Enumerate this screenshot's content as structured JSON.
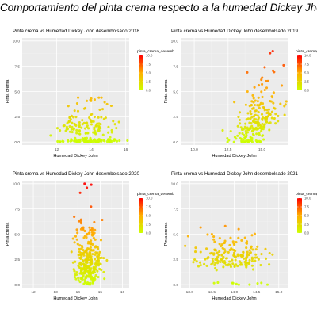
{
  "figure": {
    "title": "Comportamiento del pinta crema respecto a la humedad Dickey Jhon"
  },
  "colors": {
    "panel_bg": "#ebebeb",
    "grid_major": "#ffffff",
    "low": "#ccff00",
    "mid": "#ffb000",
    "high": "#ff0000",
    "text": "#333333"
  },
  "chart_data": [
    {
      "type": "scatter",
      "title": "Pinta crema vs Humedad Dickey John desembolsado 2018",
      "xlabel": "Humedad Dickey John",
      "ylabel": "Pinta crema",
      "xlim": [
        10.0,
        16.2
      ],
      "ylim": [
        -0.3,
        10.3
      ],
      "x_ticks": [
        12,
        14,
        16
      ],
      "y_ticks": [
        0.0,
        2.5,
        5.0,
        7.5,
        10.0
      ],
      "legend": {
        "title": "pinta_crema_desemb",
        "ticks": [
          0.0,
          2.5,
          5.0,
          7.5,
          10.0
        ]
      },
      "generator": {
        "seed": 11,
        "n": 220,
        "x_mean": 13.9,
        "x_sd": 0.8,
        "zero_frac": 0.45,
        "y_scale": 1.1,
        "y_max": 4.4
      },
      "highlight_points": [
        {
          "x": 14.0,
          "y": 4.3
        },
        {
          "x": 14.2,
          "y": 4.2
        },
        {
          "x": 13.6,
          "y": 3.3
        },
        {
          "x": 14.5,
          "y": 3.2
        }
      ]
    },
    {
      "type": "scatter",
      "title": "Pinta crema vs Humedad Dickey John desembolsado 2019",
      "xlabel": "Humedad Dickey John",
      "ylabel": "Pinta crema",
      "xlim": [
        9.0,
        16.9
      ],
      "ylim": [
        -0.3,
        10.3
      ],
      "x_ticks": [
        10,
        12.5,
        15
      ],
      "y_ticks": [
        0.0,
        2.5,
        5.0,
        7.5,
        10.0
      ],
      "legend": {
        "title": "pinta_crema_desemb",
        "ticks": [
          0.0,
          2.5,
          5.0,
          7.5,
          10.0
        ]
      },
      "generator": {
        "seed": 23,
        "n": 210,
        "x_mean": 14.6,
        "x_sd": 0.85,
        "zero_frac": 0.12,
        "y_scale": 1.6,
        "y_max": 9.0,
        "slope": 0.45
      },
      "highlight_points": [
        {
          "x": 15.6,
          "y": 8.8
        },
        {
          "x": 15.8,
          "y": 9.0
        },
        {
          "x": 16.6,
          "y": 7.6
        },
        {
          "x": 15.2,
          "y": 7.4
        }
      ]
    },
    {
      "type": "scatter",
      "title": "Pinta crema vs Humedad Dickey John desembolsado 2020",
      "xlabel": "Humedad Dickey John",
      "ylabel": "Pinta crema",
      "xlim": [
        11.5,
        16.3
      ],
      "ylim": [
        -0.3,
        10.3
      ],
      "x_ticks": [
        12,
        13,
        14,
        15,
        16
      ],
      "y_ticks": [
        0.0,
        2.5,
        5.0,
        7.5,
        10.0
      ],
      "legend": {
        "title": "pinta_crema_desemb",
        "ticks": [
          0.0,
          2.5,
          5.0,
          7.5,
          10.0
        ]
      },
      "generator": {
        "seed": 37,
        "n": 300,
        "x_mean": 14.45,
        "x_sd": 0.28,
        "zero_frac": 0.05,
        "y_scale": 1.9,
        "y_max": 10.0
      },
      "highlight_points": [
        {
          "x": 14.3,
          "y": 10.0
        },
        {
          "x": 14.6,
          "y": 9.9
        },
        {
          "x": 14.4,
          "y": 9.6
        },
        {
          "x": 14.1,
          "y": 9.1
        }
      ]
    },
    {
      "type": "scatter",
      "title": "Pinta crema vs Humedad Dickey John desembolsado 2021",
      "xlabel": "Humedad Dickey John",
      "ylabel": "Pinta crema",
      "xlim": [
        12.8,
        15.2
      ],
      "ylim": [
        -0.3,
        10.3
      ],
      "x_ticks": [
        13.0,
        13.5,
        14.0,
        14.5,
        15.0
      ],
      "y_ticks": [
        0.0,
        2.5,
        5.0,
        7.5,
        10.0
      ],
      "legend": {
        "title": "pinta_crema_desemb",
        "ticks": [
          0.0,
          2.5,
          5.0,
          7.5,
          10.0
        ]
      },
      "generator": {
        "seed": 53,
        "n": 180,
        "x_mean": 14.0,
        "x_sd": 0.42,
        "zero_frac": 0.06,
        "y_scale": 1.0,
        "y_max": 5.9,
        "base": 1.3
      },
      "highlight_points": [
        {
          "x": 13.8,
          "y": 5.8
        },
        {
          "x": 14.1,
          "y": 5.5
        },
        {
          "x": 13.5,
          "y": 5.0
        },
        {
          "x": 14.4,
          "y": 4.9
        }
      ]
    }
  ]
}
